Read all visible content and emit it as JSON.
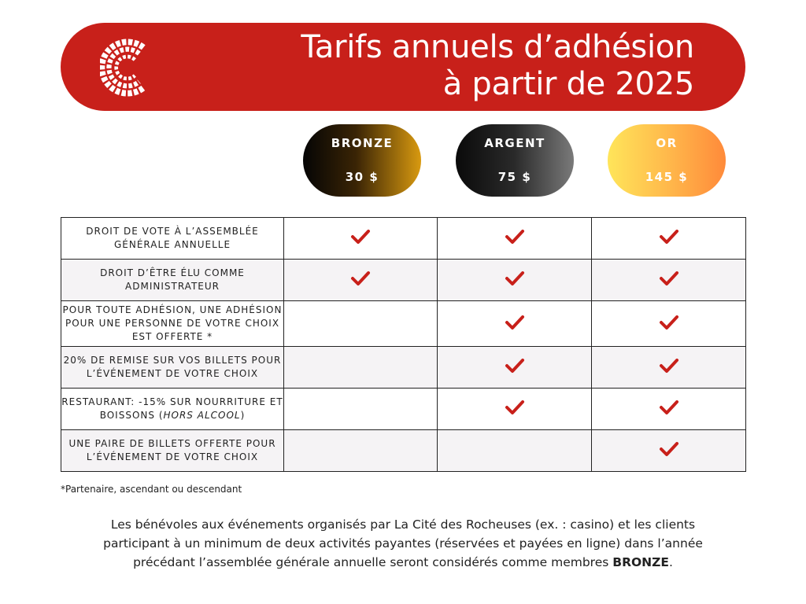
{
  "header": {
    "logo_icon": "cite-logo-icon",
    "title_line1": "Tarifs annuels d’adhésion",
    "title_line2": "à partir de 2025",
    "banner_color": "#c8201a"
  },
  "tiers": [
    {
      "name": "BRONZE",
      "price": "30 $"
    },
    {
      "name": "ARGENT",
      "price": "75 $"
    },
    {
      "name": "OR",
      "price": "145 $"
    }
  ],
  "check_icon": "check-icon",
  "check_color": "#c8201a",
  "benefits": [
    {
      "label": "DROIT DE VOTE À L’ASSEMBLÉE GÉNÉRALE ANNUELLE",
      "bronze": true,
      "argent": true,
      "or": true
    },
    {
      "label": "DROIT D’ÊTRE ÉLU COMME ADMINISTRATEUR",
      "bronze": true,
      "argent": true,
      "or": true
    },
    {
      "label": "POUR TOUTE ADHÉSION, UNE ADHÉSION POUR UNE PERSONNE DE VOTRE CHOIX EST OFFERTE *",
      "bronze": false,
      "argent": true,
      "or": true
    },
    {
      "label": "20% DE REMISE SUR VOS BILLETS POUR L’ÉVÉNEMENT DE VOTRE CHOIX",
      "bronze": false,
      "argent": true,
      "or": true
    },
    {
      "label_before": "RESTAURANT: -15% SUR NOURRITURE ET BOISSONS (",
      "label_italic": "HORS ALCOOL",
      "label_after": ")",
      "bronze": false,
      "argent": true,
      "or": true
    },
    {
      "label": "UNE PAIRE DE BILLETS OFFERTE POUR L’ÉVÉNEMENT DE VOTRE CHOIX",
      "bronze": false,
      "argent": false,
      "or": true
    }
  ],
  "footnote": "*Partenaire, ascendant ou descendant",
  "notice": {
    "text": "Les bénévoles aux événements organisés par La Cité des Rocheuses (ex. : casino) et les clients participant à un minimum de deux activités payantes (réservées et payées en ligne) dans l’année précédant l’assemblée générale annuelle seront considérés comme membres ",
    "bold": "BRONZE",
    "end": "."
  }
}
